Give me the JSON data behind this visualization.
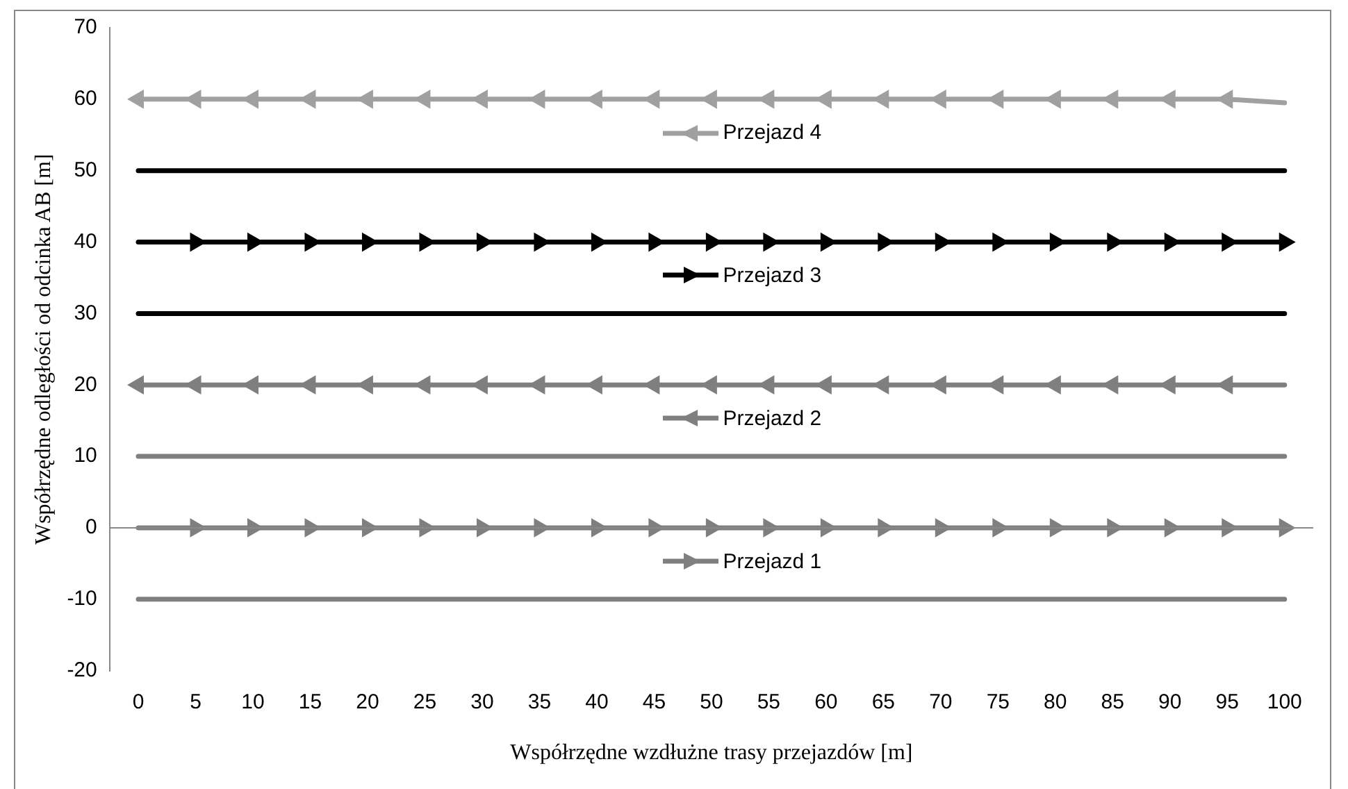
{
  "chart_data": {
    "type": "line",
    "xlabel": "Współrzędne wzdłużne trasy przejazdów [m]",
    "ylabel": "Współrzędne odległości od odcinka AB [m]",
    "categories": [
      "0",
      "5",
      "10",
      "15",
      "20",
      "25",
      "30",
      "35",
      "40",
      "45",
      "50",
      "55",
      "60",
      "65",
      "70",
      "75",
      "80",
      "85",
      "90",
      "95",
      "100"
    ],
    "series": [
      {
        "name": "Przejazd 4",
        "color": "#a0a0a0",
        "values": [
          60,
          60,
          60,
          60,
          60,
          60,
          60,
          60,
          60,
          60,
          60,
          60,
          60,
          60,
          60,
          60,
          60,
          60,
          60,
          60,
          59.5
        ]
      },
      {
        "color": "#000000",
        "marker": "none",
        "values": [
          50,
          50,
          50,
          50,
          50,
          50,
          50,
          50,
          50,
          50,
          50,
          50,
          50,
          50,
          50,
          50,
          50,
          50,
          50,
          50,
          50
        ]
      },
      {
        "name": "Przejazd 3",
        "color": "#000000",
        "values": [
          40,
          40,
          40,
          40,
          40,
          40,
          40,
          40,
          40,
          40,
          40,
          40,
          40,
          40,
          40,
          40,
          40,
          40,
          40,
          40,
          40
        ]
      },
      {
        "color": "#000000",
        "marker": "none",
        "values": [
          30,
          30,
          30,
          30,
          30,
          30,
          30,
          30,
          30,
          30,
          30,
          30,
          30,
          30,
          30,
          30,
          30,
          30,
          30,
          30,
          30
        ]
      },
      {
        "name": "Przejazd 2",
        "color": "#7f7f7f",
        "values": [
          20,
          20,
          20,
          20,
          20,
          20,
          20,
          20,
          20,
          20,
          20,
          20,
          20,
          20,
          20,
          20,
          20,
          20,
          20,
          20,
          20
        ]
      },
      {
        "color": "#7f7f7f",
        "marker": "none",
        "values": [
          10,
          10,
          10,
          10,
          10,
          10,
          10,
          10,
          10,
          10,
          10,
          10,
          10,
          10,
          10,
          10,
          10,
          10,
          10,
          10,
          10
        ]
      },
      {
        "name": "Przejazd 1",
        "color": "#7f7f7f",
        "values": [
          0,
          0,
          0,
          0,
          0,
          0,
          0,
          0,
          0,
          0,
          0,
          0,
          0,
          0,
          0,
          0,
          0,
          0,
          0,
          0,
          0
        ]
      },
      {
        "color": "#7f7f7f",
        "marker": "none",
        "values": [
          -10,
          -10,
          -10,
          -10,
          -10,
          -10,
          -10,
          -10,
          -10,
          -10,
          -10,
          -10,
          -10,
          -10,
          -10,
          -10,
          -10,
          -10,
          -10,
          -10,
          -10
        ]
      }
    ],
    "ylim": [
      -20,
      70
    ],
    "yticks": [
      -20,
      -10,
      0,
      10,
      20,
      30,
      40,
      50,
      60,
      70
    ],
    "grid": false,
    "legend": "center",
    "marker": "triangle"
  }
}
